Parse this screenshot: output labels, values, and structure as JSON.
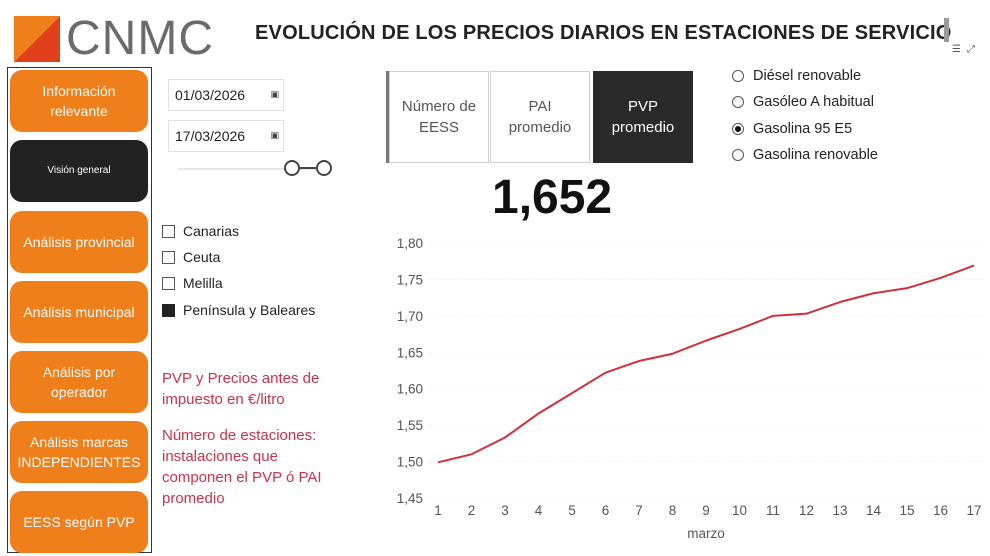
{
  "header": {
    "logo_text": "CNMC",
    "title": "EVOLUCIÓN DE LOS PRECIOS DIARIOS EN ESTACIONES DE SERVICIO"
  },
  "sidebar": {
    "items": [
      {
        "label": "Información relevante",
        "active": false
      },
      {
        "label": "Visión general",
        "active": true
      },
      {
        "label": "Análisis provincial",
        "active": false
      },
      {
        "label": "Análisis municipal",
        "active": false
      },
      {
        "label": "Análisis por operador",
        "active": false
      },
      {
        "label": "Análisis marcas INDEPENDIENTES",
        "active": false
      },
      {
        "label": "EESS según PVP",
        "active": false
      }
    ],
    "accent_color": "#ef7f1a",
    "active_color": "#222222"
  },
  "dates": {
    "start": "01/03/2026",
    "end": "17/03/2026"
  },
  "regions": [
    {
      "label": "Canarias",
      "checked": false
    },
    {
      "label": "Ceuta",
      "checked": false
    },
    {
      "label": "Melilla",
      "checked": false
    },
    {
      "label": "Península y Baleares",
      "checked": true
    }
  ],
  "notes": {
    "pvp": "PVP y Precios antes de impuesto en €/litro",
    "stations": "Número de estaciones: instalaciones que componen el PVP ó PAI promedio"
  },
  "metric_tabs": [
    {
      "label": "Número de EESS",
      "active": false
    },
    {
      "label": "PAI promedio",
      "active": false
    },
    {
      "label": "PVP promedio",
      "active": true
    }
  ],
  "fuel_options": [
    {
      "label": "Diésel renovable",
      "selected": false
    },
    {
      "label": "Gasóleo A habitual",
      "selected": false
    },
    {
      "label": "Gasolina 95 E5",
      "selected": true
    },
    {
      "label": "Gasolina renovable",
      "selected": false
    }
  ],
  "kpi": {
    "value": "1,652"
  },
  "chart_data": {
    "type": "line",
    "xlabel": "marzo",
    "ylabel": "",
    "x": [
      1,
      2,
      3,
      4,
      5,
      6,
      7,
      8,
      9,
      10,
      11,
      12,
      13,
      14,
      15,
      16,
      17
    ],
    "series": [
      {
        "values": [
          1.499,
          1.51,
          1.533,
          1.566,
          1.594,
          1.622,
          1.638,
          1.648,
          1.666,
          1.682,
          1.7,
          1.703,
          1.719,
          1.731,
          1.738,
          1.752,
          1.769
        ],
        "color": "#d12f3c"
      }
    ],
    "ylim": [
      1.45,
      1.8
    ],
    "yticks": [
      "1,45",
      "1,50",
      "1,55",
      "1,60",
      "1,65",
      "1,70",
      "1,75",
      "1,80"
    ],
    "grid": true
  }
}
